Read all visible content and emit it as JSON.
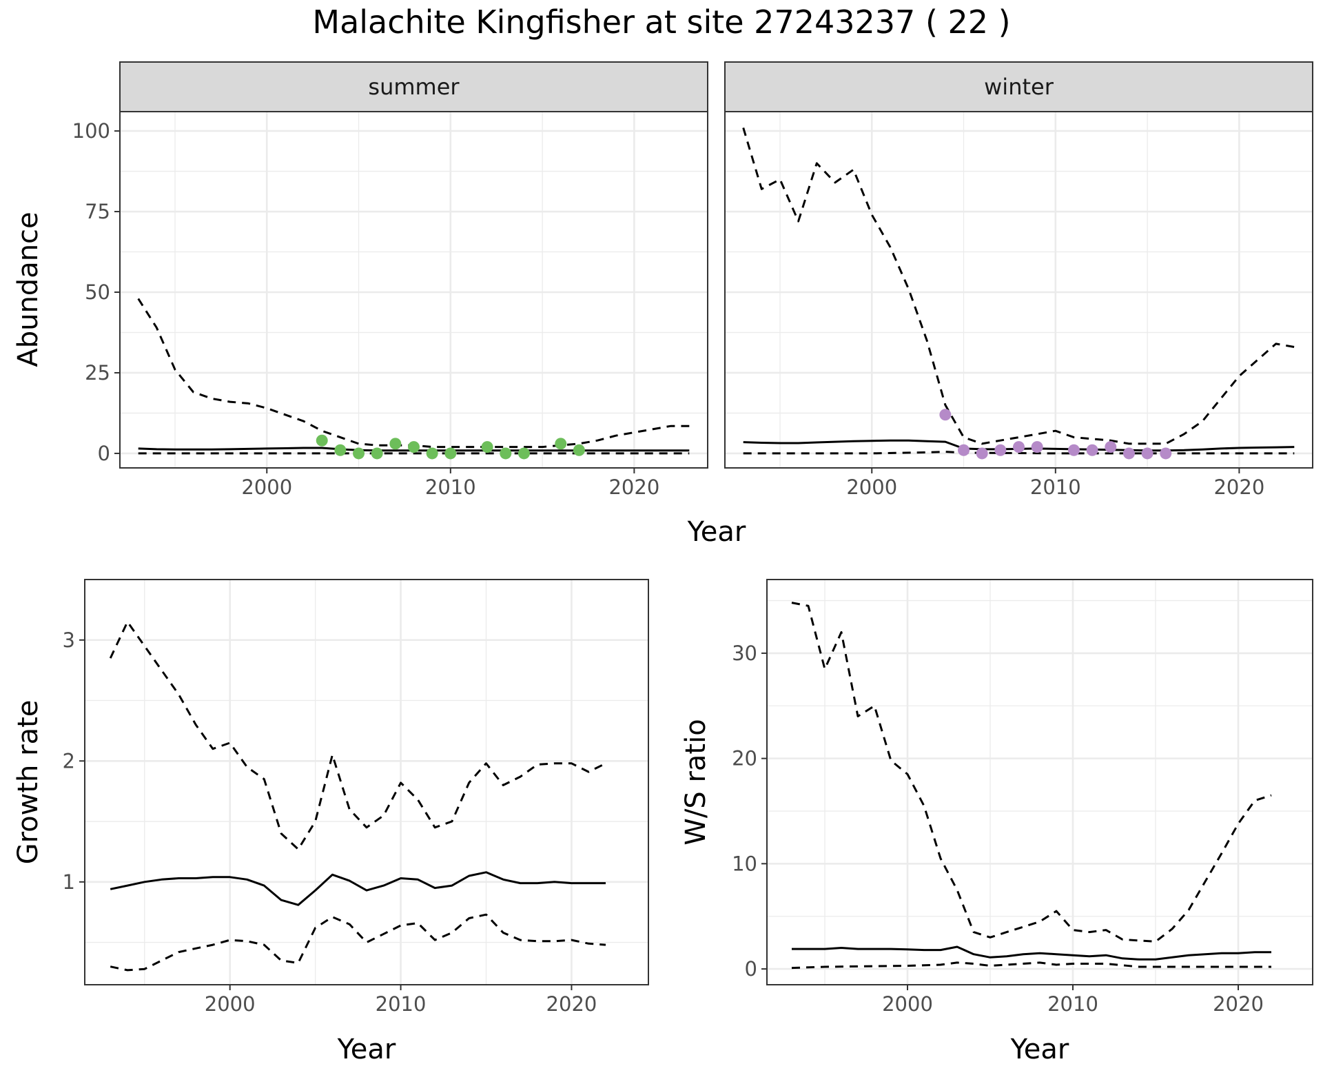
{
  "title": "Malachite Kingfisher at site 27243237 ( 22 )",
  "colors": {
    "summer_points": "#6dbe5a",
    "winter_points": "#b58ac8",
    "strip_background": "#d9d9d9",
    "line": "#000000",
    "grid": "#ebebeb"
  },
  "chart_data": [
    {
      "type": "line",
      "facet": "summer",
      "xlabel": "Year",
      "ylabel": "Abundance",
      "xlim": [
        1992,
        2024
      ],
      "ylim": [
        -4.5,
        106
      ],
      "xticks": [
        2000,
        2010,
        2020
      ],
      "yticks": [
        0,
        25,
        50,
        75,
        100
      ],
      "grid": true,
      "series": [
        {
          "role": "upper",
          "style": "dashed",
          "x": [
            1993,
            1994,
            1995,
            1996,
            1997,
            1998,
            1999,
            2000,
            2001,
            2002,
            2003,
            2004,
            2005,
            2006,
            2007,
            2008,
            2009,
            2010,
            2011,
            2012,
            2013,
            2014,
            2015,
            2016,
            2017,
            2018,
            2019,
            2020,
            2021,
            2022,
            2023
          ],
          "y": [
            48,
            39,
            26,
            19,
            17,
            16,
            15.5,
            14,
            12,
            10,
            7,
            5,
            3,
            2.5,
            2.5,
            2.5,
            2,
            2,
            2,
            2,
            2,
            2,
            2,
            2.5,
            3,
            4,
            5.5,
            6.5,
            7.5,
            8.5,
            8.5
          ]
        },
        {
          "role": "mean",
          "style": "solid",
          "x": [
            1993,
            1994,
            1995,
            1996,
            1997,
            1998,
            1999,
            2000,
            2001,
            2002,
            2003,
            2004,
            2005,
            2006,
            2007,
            2008,
            2009,
            2010,
            2011,
            2012,
            2013,
            2014,
            2015,
            2016,
            2017,
            2018,
            2019,
            2020,
            2021,
            2022,
            2023
          ],
          "y": [
            1.5,
            1.3,
            1.2,
            1.2,
            1.2,
            1.3,
            1.4,
            1.5,
            1.6,
            1.7,
            1.7,
            1.3,
            1.0,
            0.9,
            0.9,
            0.9,
            0.9,
            0.9,
            0.9,
            0.9,
            0.9,
            0.9,
            0.9,
            0.9,
            0.9,
            0.9,
            0.9,
            0.9,
            0.9,
            0.9,
            0.9
          ]
        },
        {
          "role": "lower",
          "style": "dashed",
          "x": [
            1993,
            1995,
            2000,
            2005,
            2010,
            2015,
            2020,
            2023
          ],
          "y": [
            0,
            0,
            0,
            0,
            0,
            0,
            0,
            0
          ]
        }
      ],
      "points": {
        "x": [
          2003,
          2004,
          2005,
          2006,
          2007,
          2008,
          2009,
          2010,
          2012,
          2013,
          2014,
          2016,
          2017
        ],
        "y": [
          4,
          1,
          0,
          0,
          3,
          2,
          0,
          0,
          2,
          0,
          0,
          3,
          1
        ]
      }
    },
    {
      "type": "line",
      "facet": "winter",
      "xlabel": "Year",
      "ylabel": "Abundance",
      "xlim": [
        1992,
        2024
      ],
      "ylim": [
        -4.5,
        106
      ],
      "xticks": [
        2000,
        2010,
        2020
      ],
      "yticks": [
        0,
        25,
        50,
        75,
        100
      ],
      "grid": true,
      "series": [
        {
          "role": "upper",
          "style": "dashed",
          "x": [
            1993,
            1994,
            1995,
            1996,
            1997,
            1998,
            1999,
            2000,
            2001,
            2002,
            2003,
            2004,
            2005,
            2006,
            2007,
            2008,
            2009,
            2010,
            2011,
            2012,
            2013,
            2014,
            2015,
            2016,
            2017,
            2018,
            2019,
            2020,
            2021,
            2022,
            2023
          ],
          "y": [
            101,
            82,
            85,
            72,
            90,
            84,
            88,
            74,
            64,
            51,
            35,
            15,
            5,
            3,
            4,
            5,
            6,
            7,
            5,
            4.5,
            4,
            3,
            3,
            3,
            6,
            10,
            17,
            24,
            29,
            34,
            33
          ]
        },
        {
          "role": "mean",
          "style": "solid",
          "x": [
            1993,
            1994,
            1995,
            1996,
            1997,
            1998,
            1999,
            2000,
            2001,
            2002,
            2003,
            2004,
            2005,
            2006,
            2007,
            2008,
            2009,
            2010,
            2011,
            2012,
            2013,
            2014,
            2015,
            2016,
            2017,
            2018,
            2019,
            2020,
            2021,
            2022,
            2023
          ],
          "y": [
            3.5,
            3.3,
            3.2,
            3.2,
            3.4,
            3.6,
            3.8,
            3.9,
            4.0,
            4.0,
            3.8,
            3.6,
            1.5,
            1.3,
            1.3,
            1.4,
            1.5,
            1.4,
            1.3,
            1.2,
            1.1,
            1.0,
            0.9,
            0.9,
            1.0,
            1.2,
            1.5,
            1.7,
            1.8,
            1.9,
            2.0
          ]
        },
        {
          "role": "lower",
          "style": "dashed",
          "x": [
            1993,
            1995,
            2000,
            2003,
            2004,
            2005,
            2010,
            2015,
            2020,
            2023
          ],
          "y": [
            0,
            0,
            0,
            0.3,
            0.5,
            0.2,
            0,
            0,
            0,
            0
          ]
        }
      ],
      "points": {
        "x": [
          2004,
          2005,
          2006,
          2007,
          2008,
          2009,
          2011,
          2012,
          2013,
          2014,
          2015,
          2016
        ],
        "y": [
          12,
          1,
          0,
          1,
          2,
          2,
          1,
          1,
          2,
          0,
          0,
          0
        ]
      }
    },
    {
      "type": "line",
      "facet": "",
      "xlabel": "Year",
      "ylabel": "Growth rate",
      "xlim": [
        1991.5,
        2024.5
      ],
      "ylim": [
        0.15,
        3.5
      ],
      "xticks": [
        2000,
        2010,
        2020
      ],
      "yticks": [
        1,
        2,
        3
      ],
      "grid": true,
      "series": [
        {
          "role": "upper",
          "style": "dashed",
          "x": [
            1993,
            1994,
            1995,
            1996,
            1997,
            1998,
            1999,
            2000,
            2001,
            2002,
            2003,
            2004,
            2005,
            2006,
            2007,
            2008,
            2009,
            2010,
            2011,
            2012,
            2013,
            2014,
            2015,
            2016,
            2017,
            2018,
            2019,
            2020,
            2021,
            2022
          ],
          "y": [
            2.85,
            3.15,
            2.95,
            2.75,
            2.55,
            2.3,
            2.1,
            2.15,
            1.95,
            1.85,
            1.4,
            1.27,
            1.5,
            2.05,
            1.6,
            1.45,
            1.55,
            1.82,
            1.68,
            1.45,
            1.5,
            1.82,
            1.98,
            1.8,
            1.87,
            1.97,
            1.98,
            1.98,
            1.91,
            1.98
          ]
        },
        {
          "role": "mean",
          "style": "solid",
          "x": [
            1993,
            1994,
            1995,
            1996,
            1997,
            1998,
            1999,
            2000,
            2001,
            2002,
            2003,
            2004,
            2005,
            2006,
            2007,
            2008,
            2009,
            2010,
            2011,
            2012,
            2013,
            2014,
            2015,
            2016,
            2017,
            2018,
            2019,
            2020,
            2021,
            2022
          ],
          "y": [
            0.94,
            0.97,
            1.0,
            1.02,
            1.03,
            1.03,
            1.04,
            1.04,
            1.02,
            0.97,
            0.85,
            0.81,
            0.93,
            1.06,
            1.01,
            0.93,
            0.97,
            1.03,
            1.02,
            0.95,
            0.97,
            1.05,
            1.08,
            1.02,
            0.99,
            0.99,
            1.0,
            0.99,
            0.99,
            0.99
          ]
        },
        {
          "role": "lower",
          "style": "dashed",
          "x": [
            1993,
            1994,
            1995,
            1996,
            1997,
            1998,
            1999,
            2000,
            2001,
            2002,
            2003,
            2004,
            2005,
            2006,
            2007,
            2008,
            2009,
            2010,
            2011,
            2012,
            2013,
            2014,
            2015,
            2016,
            2017,
            2018,
            2019,
            2020,
            2021,
            2022
          ],
          "y": [
            0.3,
            0.27,
            0.28,
            0.35,
            0.42,
            0.45,
            0.48,
            0.52,
            0.51,
            0.48,
            0.35,
            0.33,
            0.62,
            0.71,
            0.65,
            0.5,
            0.57,
            0.64,
            0.66,
            0.52,
            0.58,
            0.7,
            0.73,
            0.58,
            0.52,
            0.51,
            0.51,
            0.52,
            0.49,
            0.48
          ]
        }
      ]
    },
    {
      "type": "line",
      "facet": "",
      "xlabel": "Year",
      "ylabel": "W/S ratio",
      "xlim": [
        1991.5,
        2024.5
      ],
      "ylim": [
        -1.5,
        37
      ],
      "xticks": [
        2000,
        2010,
        2020
      ],
      "yticks": [
        0,
        10,
        20,
        30
      ],
      "grid": true,
      "series": [
        {
          "role": "upper",
          "style": "dashed",
          "x": [
            1993,
            1994,
            1995,
            1996,
            1997,
            1998,
            1999,
            2000,
            2001,
            2002,
            2003,
            2004,
            2005,
            2006,
            2007,
            2008,
            2009,
            2010,
            2011,
            2012,
            2013,
            2014,
            2015,
            2016,
            2017,
            2018,
            2019,
            2020,
            2021,
            2022
          ],
          "y": [
            34.8,
            34.5,
            28.5,
            32,
            24,
            25,
            19.8,
            18.5,
            15.5,
            10.5,
            7.5,
            3.5,
            3,
            3.5,
            4,
            4.5,
            5.5,
            3.7,
            3.5,
            3.7,
            2.8,
            2.7,
            2.6,
            3.8,
            5.6,
            8.3,
            11,
            13.8,
            16,
            16.5
          ]
        },
        {
          "role": "mean",
          "style": "solid",
          "x": [
            1993,
            1994,
            1995,
            1996,
            1997,
            1998,
            1999,
            2000,
            2001,
            2002,
            2003,
            2004,
            2005,
            2006,
            2007,
            2008,
            2009,
            2010,
            2011,
            2012,
            2013,
            2014,
            2015,
            2016,
            2017,
            2018,
            2019,
            2020,
            2021,
            2022
          ],
          "y": [
            1.9,
            1.9,
            1.9,
            2.0,
            1.9,
            1.9,
            1.9,
            1.85,
            1.8,
            1.8,
            2.1,
            1.4,
            1.1,
            1.2,
            1.4,
            1.5,
            1.4,
            1.3,
            1.2,
            1.3,
            1.0,
            0.9,
            0.9,
            1.1,
            1.3,
            1.4,
            1.5,
            1.5,
            1.6,
            1.6
          ]
        },
        {
          "role": "lower",
          "style": "dashed",
          "x": [
            1993,
            1995,
            2000,
            2002,
            2003,
            2004,
            2005,
            2006,
            2008,
            2009,
            2010,
            2012,
            2014,
            2016,
            2020,
            2022
          ],
          "y": [
            0.1,
            0.2,
            0.3,
            0.4,
            0.6,
            0.5,
            0.3,
            0.4,
            0.6,
            0.4,
            0.5,
            0.5,
            0.2,
            0.2,
            0.2,
            0.2
          ]
        }
      ]
    }
  ]
}
